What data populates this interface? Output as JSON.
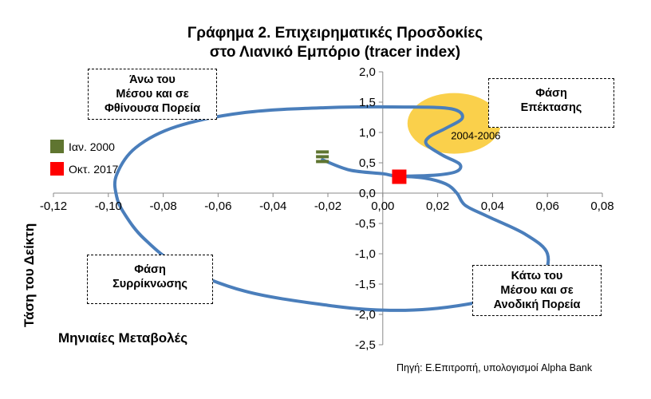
{
  "title_line1": "Γράφημα 2. Επιχειρηματικές Προσδοκίες",
  "title_line2": "στο Λιανικό Εμπόριο (tracer index)",
  "boxes": {
    "top_left": [
      "Άνω του",
      "Μέσου και σε",
      "Φθίνουσα Πορεία"
    ],
    "top_right": [
      "Φάση",
      "Επέκτασης"
    ],
    "bottom_left": [
      "Φάση",
      "Συρρίκνωσης"
    ],
    "bottom_right": [
      "Κάτω του",
      "Μέσου και σε",
      "Ανοδική Πορεία"
    ]
  },
  "legend": [
    {
      "label": "Ιαν. 2000",
      "color": "#5f7530"
    },
    {
      "label": "Οκτ. 2017",
      "color": "#ff0000"
    }
  ],
  "ylabel": "Τάση του Δείκτη",
  "xlabel": "Μηνιαίες Μεταβολές",
  "source": "Πηγή: Ε.Επιτροπή, υπολογισμοί Alpha Bank",
  "highlight_label": "2004-2006",
  "chart_data": {
    "type": "scatter",
    "x_ticks": [
      "-0,12",
      "-0,10",
      "-0,08",
      "-0,06",
      "-0,04",
      "-0,02",
      "0,00",
      "0,02",
      "0,04",
      "0,06",
      "0,08"
    ],
    "y_ticks": [
      "2,0",
      "1,5",
      "1,0",
      "0,5",
      "0,0",
      "-0,5",
      "-1,0",
      "-1,5",
      "-2,0",
      "-2,5"
    ],
    "xlim": [
      -0.12,
      0.08
    ],
    "ylim": [
      -2.5,
      2.0
    ],
    "series": [
      {
        "color": "#4a7ebb",
        "points": [
          [
            -0.022,
            0.55
          ],
          [
            -0.012,
            0.38
          ],
          [
            0.0,
            0.32
          ],
          [
            0.006,
            0.28
          ],
          [
            0.02,
            0.3
          ],
          [
            0.027,
            0.36
          ],
          [
            0.028,
            0.48
          ],
          [
            0.022,
            0.62
          ],
          [
            0.016,
            0.8
          ],
          [
            0.017,
            0.93
          ],
          [
            0.023,
            1.07
          ],
          [
            0.029,
            1.24
          ],
          [
            0.025,
            1.39
          ],
          [
            0.008,
            1.42
          ],
          [
            -0.02,
            1.41
          ],
          [
            -0.05,
            1.33
          ],
          [
            -0.075,
            1.1
          ],
          [
            -0.09,
            0.75
          ],
          [
            -0.097,
            0.3
          ],
          [
            -0.097,
            -0.05
          ],
          [
            -0.094,
            -0.35
          ],
          [
            -0.087,
            -0.75
          ],
          [
            -0.074,
            -1.2
          ],
          [
            -0.05,
            -1.62
          ],
          [
            -0.02,
            -1.85
          ],
          [
            0.0,
            -1.93
          ],
          [
            0.02,
            -1.9
          ],
          [
            0.042,
            -1.72
          ],
          [
            0.057,
            -1.42
          ],
          [
            0.06,
            -1.0
          ],
          [
            0.052,
            -0.68
          ],
          [
            0.038,
            -0.38
          ],
          [
            0.03,
            -0.2
          ],
          [
            0.027,
            0.0
          ],
          [
            0.023,
            0.15
          ],
          [
            0.015,
            0.25
          ],
          [
            0.006,
            0.28
          ]
        ]
      }
    ],
    "markers": [
      {
        "label": "Ιαν. 2000",
        "x": -0.022,
        "y": 0.6,
        "color": "#5f7530"
      },
      {
        "label": "Οκτ. 2017",
        "x": 0.006,
        "y": 0.27,
        "color": "#ff0000"
      }
    ],
    "highlight": {
      "label": "2004-2006",
      "x": 0.026,
      "y": 1.15,
      "rx": 0.017,
      "ry": 0.5,
      "color": "#f9c82b"
    },
    "grid": false
  }
}
